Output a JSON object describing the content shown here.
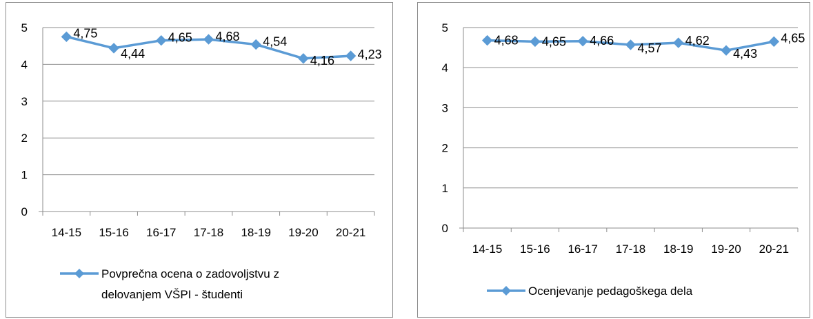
{
  "chart_data": [
    {
      "type": "line",
      "categories": [
        "14-15",
        "15-16",
        "16-17",
        "17-18",
        "18-19",
        "19-20",
        "20-21"
      ],
      "series": [
        {
          "name": "Povprečna ocena o zadovoljstvu z delovanjem VŠPI - študenti",
          "values": [
            4.75,
            4.44,
            4.65,
            4.68,
            4.54,
            4.16,
            4.23
          ],
          "labels": [
            "4,75",
            "4,44",
            "4,65",
            "4,68",
            "4,54",
            "4,16",
            "4,23"
          ]
        }
      ],
      "legend_lines": [
        "Povprečna ocena o zadovoljstvu z",
        "delovanjem VŠPI - študenti"
      ],
      "yticks": [
        "0",
        "1",
        "2",
        "3",
        "4",
        "5"
      ],
      "ylim": [
        0,
        5
      ],
      "grid": true,
      "legend_position": "bottom",
      "color": "#5b9bd5"
    },
    {
      "type": "line",
      "categories": [
        "14-15",
        "15-16",
        "16-17",
        "17-18",
        "18-19",
        "19-20",
        "20-21"
      ],
      "series": [
        {
          "name": "Ocenjevanje pedagoškega dela",
          "values": [
            4.68,
            4.65,
            4.66,
            4.57,
            4.62,
            4.43,
            4.65
          ],
          "labels": [
            "4,68",
            "4,65",
            "4,66",
            "4,57",
            "4,62",
            "4,43",
            "4,65"
          ]
        }
      ],
      "legend_lines": [
        "Ocenjevanje pedagoškega dela"
      ],
      "yticks": [
        "0",
        "1",
        "2",
        "3",
        "4",
        "5"
      ],
      "ylim": [
        0,
        5
      ],
      "grid": true,
      "legend_position": "bottom",
      "color": "#5b9bd5"
    }
  ]
}
